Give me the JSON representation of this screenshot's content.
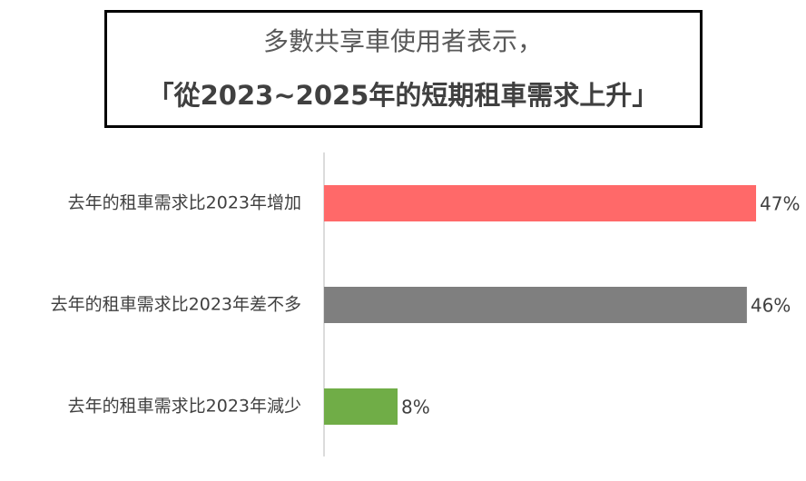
{
  "chart_data": {
    "type": "hbar",
    "title": "多數共享車使用者表示，",
    "subtitle": "「從2023~2025年的短期租車需求上升」",
    "categories": [
      "去年的租車需求比2023年增加",
      "去年的租車需求比2023年差不多",
      "去年的租車需求比2023年減少"
    ],
    "values": [
      47,
      46,
      8
    ],
    "value_labels": [
      "47%",
      "46%",
      "8%"
    ],
    "colors": [
      "#ff6969",
      "#7f7f7f",
      "#70ad47"
    ]
  }
}
